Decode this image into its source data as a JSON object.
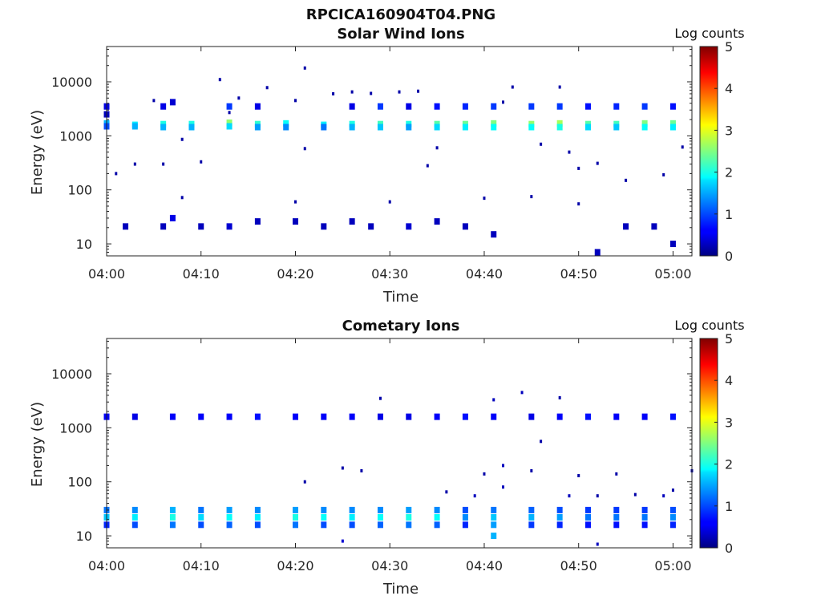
{
  "figure_title": "RPCICA160904T04.PNG",
  "chart_data": [
    {
      "type": "heatmap",
      "title": "Solar Wind Ions",
      "xlabel": "Time",
      "ylabel": "Energy (eV)",
      "x_ticks": [
        "04:00",
        "04:10",
        "04:20",
        "04:30",
        "04:40",
        "04:50",
        "05:00"
      ],
      "y_ticks": [
        "10",
        "100",
        "1000",
        "10000"
      ],
      "y_scale": "log",
      "xlim": [
        "04:00",
        "05:02"
      ],
      "ylim": [
        6,
        45000
      ],
      "colorbar": {
        "label": "Log counts",
        "ticks": [
          "0",
          "1",
          "2",
          "3",
          "4",
          "5"
        ],
        "range": [
          0,
          5
        ],
        "colormap": "jet"
      },
      "cells": [
        [
          "04:00",
          1700,
          1.5
        ],
        [
          "04:00",
          1500,
          1.0
        ],
        [
          "04:00",
          3500,
          0.5
        ],
        [
          "04:00",
          2500,
          0.3
        ],
        [
          "04:03",
          1600,
          1.8
        ],
        [
          "04:03",
          1500,
          1.5
        ],
        [
          "04:06",
          1650,
          2.0
        ],
        [
          "04:06",
          1450,
          1.5
        ],
        [
          "04:06",
          3500,
          0.5
        ],
        [
          "04:07",
          4200,
          0.4
        ],
        [
          "04:09",
          1650,
          2.0
        ],
        [
          "04:09",
          1450,
          1.5
        ],
        [
          "04:13",
          1750,
          2.6
        ],
        [
          "04:13",
          1500,
          1.7
        ],
        [
          "04:13",
          3500,
          0.9
        ],
        [
          "04:16",
          1650,
          2.1
        ],
        [
          "04:16",
          1450,
          1.4
        ],
        [
          "04:16",
          3500,
          0.5
        ],
        [
          "04:19",
          1700,
          1.9
        ],
        [
          "04:19",
          1450,
          1.3
        ],
        [
          "04:23",
          1600,
          1.8
        ],
        [
          "04:23",
          1450,
          1.2
        ],
        [
          "04:26",
          1650,
          2.0
        ],
        [
          "04:26",
          1450,
          1.5
        ],
        [
          "04:26",
          3500,
          0.5
        ],
        [
          "04:29",
          1650,
          2.2
        ],
        [
          "04:29",
          1450,
          1.6
        ],
        [
          "04:29",
          3500,
          0.9
        ],
        [
          "04:32",
          1650,
          2.0
        ],
        [
          "04:32",
          1450,
          1.4
        ],
        [
          "04:32",
          3500,
          0.5
        ],
        [
          "04:35",
          1650,
          2.3
        ],
        [
          "04:35",
          1450,
          1.7
        ],
        [
          "04:35",
          3500,
          0.7
        ],
        [
          "04:38",
          1650,
          2.4
        ],
        [
          "04:38",
          1450,
          1.8
        ],
        [
          "04:38",
          3500,
          0.8
        ],
        [
          "04:41",
          1700,
          2.5
        ],
        [
          "04:41",
          1450,
          1.9
        ],
        [
          "04:41",
          3500,
          0.9
        ],
        [
          "04:45",
          1650,
          2.6
        ],
        [
          "04:45",
          1450,
          1.9
        ],
        [
          "04:45",
          3500,
          0.9
        ],
        [
          "04:48",
          1700,
          2.7
        ],
        [
          "04:48",
          1450,
          2.0
        ],
        [
          "04:48",
          3500,
          0.9
        ],
        [
          "04:51",
          1650,
          2.3
        ],
        [
          "04:51",
          1450,
          1.7
        ],
        [
          "04:51",
          3500,
          0.7
        ],
        [
          "04:54",
          1650,
          2.2
        ],
        [
          "04:54",
          1450,
          1.6
        ],
        [
          "04:54",
          3500,
          0.8
        ],
        [
          "04:57",
          1700,
          2.5
        ],
        [
          "04:57",
          1450,
          1.9
        ],
        [
          "04:57",
          3500,
          0.9
        ],
        [
          "05:00",
          1700,
          2.4
        ],
        [
          "05:00",
          1450,
          1.8
        ],
        [
          "05:00",
          3500,
          0.7
        ],
        [
          "04:02",
          21,
          0.3
        ],
        [
          "04:06",
          21,
          0.3
        ],
        [
          "04:07",
          30,
          0.5
        ],
        [
          "04:10",
          21,
          0.3
        ],
        [
          "04:13",
          21,
          0.4
        ],
        [
          "04:16",
          26,
          0.3
        ],
        [
          "04:20",
          26,
          0.3
        ],
        [
          "04:23",
          21,
          0.3
        ],
        [
          "04:26",
          26,
          0.3
        ],
        [
          "04:28",
          21,
          0.3
        ],
        [
          "04:32",
          21,
          0.4
        ],
        [
          "04:35",
          26,
          0.3
        ],
        [
          "04:38",
          21,
          0.3
        ],
        [
          "04:41",
          15,
          0.3
        ],
        [
          "04:52",
          7,
          0.3
        ],
        [
          "04:55",
          21,
          0.3
        ],
        [
          "04:58",
          21,
          0.3
        ],
        [
          "05:00",
          10,
          0.3
        ]
      ],
      "scattered_points": [
        [
          "04:01",
          200,
          0.2
        ],
        [
          "04:03",
          300,
          0.2
        ],
        [
          "04:05",
          4500,
          0.2
        ],
        [
          "04:06",
          300,
          0.2
        ],
        [
          "04:08",
          860,
          0.2
        ],
        [
          "04:10",
          330,
          0.2
        ],
        [
          "04:12",
          11000,
          0.2
        ],
        [
          "04:13",
          2700,
          0.2
        ],
        [
          "04:14",
          5000,
          0.2
        ],
        [
          "04:17",
          7800,
          0.2
        ],
        [
          "04:20",
          4500,
          0.2
        ],
        [
          "04:21",
          18000,
          0.2
        ],
        [
          "04:21",
          580,
          0.2
        ],
        [
          "04:24",
          6000,
          0.2
        ],
        [
          "04:26",
          6500,
          0.2
        ],
        [
          "04:28",
          6100,
          0.2
        ],
        [
          "04:31",
          6500,
          0.2
        ],
        [
          "04:33",
          6700,
          0.2
        ],
        [
          "04:34",
          280,
          0.2
        ],
        [
          "04:35",
          600,
          0.2
        ],
        [
          "04:42",
          4200,
          0.2
        ],
        [
          "04:43",
          8000,
          0.2
        ],
        [
          "04:46",
          700,
          0.2
        ],
        [
          "04:48",
          8000,
          0.2
        ],
        [
          "04:49",
          500,
          0.2
        ],
        [
          "04:50",
          250,
          0.2
        ],
        [
          "04:52",
          310,
          0.2
        ],
        [
          "04:55",
          150,
          0.2
        ],
        [
          "04:59",
          190,
          0.2
        ],
        [
          "05:01",
          620,
          0.2
        ],
        [
          "04:08",
          72,
          0.2
        ],
        [
          "04:20",
          60,
          0.2
        ],
        [
          "04:30",
          60,
          0.2
        ],
        [
          "04:40",
          70,
          0.2
        ],
        [
          "04:45",
          75,
          0.2
        ],
        [
          "04:50",
          55,
          0.2
        ]
      ]
    },
    {
      "type": "heatmap",
      "title": "Cometary Ions",
      "xlabel": "Time",
      "ylabel": "Energy (eV)",
      "x_ticks": [
        "04:00",
        "04:10",
        "04:20",
        "04:30",
        "04:40",
        "04:50",
        "05:00"
      ],
      "y_ticks": [
        "10",
        "100",
        "1000",
        "10000"
      ],
      "y_scale": "log",
      "xlim": [
        "04:00",
        "05:02"
      ],
      "ylim": [
        6,
        45000
      ],
      "colorbar": {
        "label": "Log counts",
        "ticks": [
          "0",
          "1",
          "2",
          "3",
          "4",
          "5"
        ],
        "range": [
          0,
          5
        ],
        "colormap": "jet"
      },
      "cells": [
        [
          "04:00",
          1600,
          0.6
        ],
        [
          "04:03",
          1600,
          0.5
        ],
        [
          "04:07",
          1600,
          0.6
        ],
        [
          "04:10",
          1600,
          0.6
        ],
        [
          "04:13",
          1600,
          0.6
        ],
        [
          "04:16",
          1600,
          0.7
        ],
        [
          "04:20",
          1600,
          0.6
        ],
        [
          "04:23",
          1600,
          0.6
        ],
        [
          "04:26",
          1600,
          0.6
        ],
        [
          "04:29",
          1600,
          0.5
        ],
        [
          "04:32",
          1600,
          0.5
        ],
        [
          "04:35",
          1600,
          0.6
        ],
        [
          "04:38",
          1600,
          0.7
        ],
        [
          "04:41",
          1600,
          0.6
        ],
        [
          "04:45",
          1600,
          0.5
        ],
        [
          "04:48",
          1600,
          0.6
        ],
        [
          "04:51",
          1600,
          0.7
        ],
        [
          "04:54",
          1600,
          0.6
        ],
        [
          "04:57",
          1600,
          0.6
        ],
        [
          "05:00",
          1600,
          0.7
        ],
        [
          "04:00",
          30,
          1.2
        ],
        [
          "04:00",
          22,
          1.6
        ],
        [
          "04:00",
          16,
          0.8
        ],
        [
          "04:03",
          30,
          1.3
        ],
        [
          "04:03",
          22,
          1.8
        ],
        [
          "04:03",
          16,
          1.0
        ],
        [
          "04:07",
          30,
          1.5
        ],
        [
          "04:07",
          22,
          2.0
        ],
        [
          "04:07",
          16,
          1.2
        ],
        [
          "04:10",
          30,
          1.2
        ],
        [
          "04:10",
          22,
          1.7
        ],
        [
          "04:10",
          16,
          1.0
        ],
        [
          "04:13",
          30,
          1.4
        ],
        [
          "04:13",
          22,
          1.9
        ],
        [
          "04:13",
          16,
          1.1
        ],
        [
          "04:16",
          30,
          1.3
        ],
        [
          "04:16",
          22,
          1.8
        ],
        [
          "04:16",
          16,
          1.0
        ],
        [
          "04:20",
          30,
          1.4
        ],
        [
          "04:20",
          22,
          2.0
        ],
        [
          "04:20",
          16,
          1.2
        ],
        [
          "04:23",
          30,
          1.3
        ],
        [
          "04:23",
          22,
          1.9
        ],
        [
          "04:23",
          16,
          1.0
        ],
        [
          "04:26",
          30,
          1.3
        ],
        [
          "04:26",
          22,
          1.8
        ],
        [
          "04:26",
          16,
          1.0
        ],
        [
          "04:29",
          30,
          1.3
        ],
        [
          "04:29",
          22,
          1.9
        ],
        [
          "04:29",
          16,
          1.1
        ],
        [
          "04:32",
          30,
          1.4
        ],
        [
          "04:32",
          22,
          2.0
        ],
        [
          "04:32",
          16,
          1.2
        ],
        [
          "04:35",
          30,
          1.3
        ],
        [
          "04:35",
          22,
          1.9
        ],
        [
          "04:35",
          16,
          1.1
        ],
        [
          "04:38",
          30,
          1.0
        ],
        [
          "04:38",
          22,
          1.3
        ],
        [
          "04:38",
          16,
          0.8
        ],
        [
          "04:41",
          30,
          1.2
        ],
        [
          "04:41",
          22,
          1.6
        ],
        [
          "04:41",
          16,
          1.4
        ],
        [
          "04:41",
          10,
          1.5
        ],
        [
          "04:45",
          30,
          1.1
        ],
        [
          "04:45",
          22,
          1.5
        ],
        [
          "04:45",
          16,
          0.9
        ],
        [
          "04:48",
          30,
          1.0
        ],
        [
          "04:48",
          22,
          1.4
        ],
        [
          "04:48",
          16,
          0.8
        ],
        [
          "04:51",
          30,
          0.9
        ],
        [
          "04:51",
          22,
          1.2
        ],
        [
          "04:51",
          16,
          0.7
        ],
        [
          "04:54",
          30,
          0.9
        ],
        [
          "04:54",
          22,
          1.2
        ],
        [
          "04:54",
          16,
          0.7
        ],
        [
          "04:57",
          30,
          0.9
        ],
        [
          "04:57",
          22,
          1.2
        ],
        [
          "04:57",
          16,
          0.7
        ],
        [
          "05:00",
          30,
          1.0
        ],
        [
          "05:00",
          22,
          1.3
        ],
        [
          "05:00",
          16,
          0.8
        ]
      ],
      "scattered_points": [
        [
          "04:29",
          3500,
          0.2
        ],
        [
          "04:41",
          3300,
          0.3
        ],
        [
          "04:44",
          4500,
          0.3
        ],
        [
          "04:48",
          3600,
          0.2
        ],
        [
          "04:46",
          560,
          0.2
        ],
        [
          "04:21",
          100,
          0.2
        ],
        [
          "04:25",
          180,
          0.2
        ],
        [
          "04:27",
          160,
          0.2
        ],
        [
          "04:40",
          140,
          0.2
        ],
        [
          "04:42",
          200,
          0.3
        ],
        [
          "04:45",
          160,
          0.2
        ],
        [
          "04:50",
          130,
          0.2
        ],
        [
          "04:54",
          140,
          0.2
        ],
        [
          "05:02",
          160,
          0.2
        ],
        [
          "04:36",
          65,
          0.2
        ],
        [
          "04:39",
          55,
          0.3
        ],
        [
          "04:42",
          80,
          0.3
        ],
        [
          "04:49",
          55,
          0.3
        ],
        [
          "04:52",
          55,
          0.2
        ],
        [
          "04:56",
          58,
          0.2
        ],
        [
          "04:59",
          55,
          0.3
        ],
        [
          "05:00",
          70,
          0.2
        ],
        [
          "04:25",
          8,
          0.4
        ],
        [
          "04:52",
          7,
          0.3
        ]
      ]
    }
  ]
}
